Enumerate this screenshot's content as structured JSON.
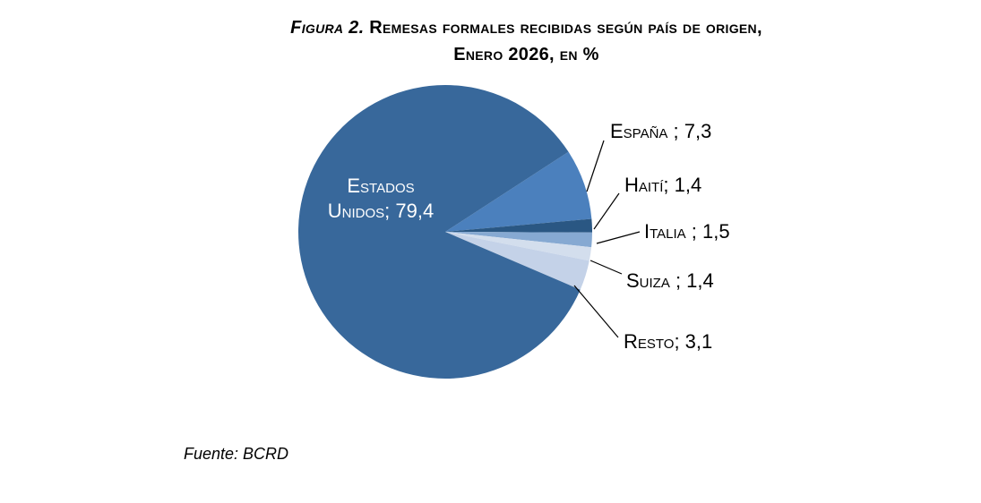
{
  "title": {
    "figure_label": "Figura 2.",
    "line1_rest": "Remesas formales recibidas según país de origen,",
    "line2": "Enero 2026, en %"
  },
  "source": "Fuente: BCRD",
  "chart_data": {
    "type": "pie",
    "title": "Figura 2. Remesas formales recibidas según país de origen, Enero 2026, en %",
    "unit": "%",
    "legend_position": "none",
    "label_style": "callout",
    "start_angle_deg": 57,
    "clockwise": true,
    "slices": [
      {
        "name": "España",
        "value": 7.3,
        "color": "#4B80BD",
        "callout_label": "España ; 7,3"
      },
      {
        "name": "Haití",
        "value": 1.4,
        "color": "#2A5783",
        "callout_label": "Haití; 1,4"
      },
      {
        "name": "Italia",
        "value": 1.5,
        "color": "#86A9D2",
        "callout_label": "Italia ; 1,5"
      },
      {
        "name": "Suiza",
        "value": 1.4,
        "color": "#D3DEED",
        "callout_label": "Suiza ; 1,4"
      },
      {
        "name": "Resto",
        "value": 3.1,
        "color": "#C4D2E8",
        "callout_label": "Resto; 3,1"
      },
      {
        "name": "Estados Unidos",
        "value": 79.4,
        "color": "#38689B",
        "inside_label_line1": "Estados",
        "inside_label_line2": "Unidos; 79,4"
      }
    ]
  }
}
